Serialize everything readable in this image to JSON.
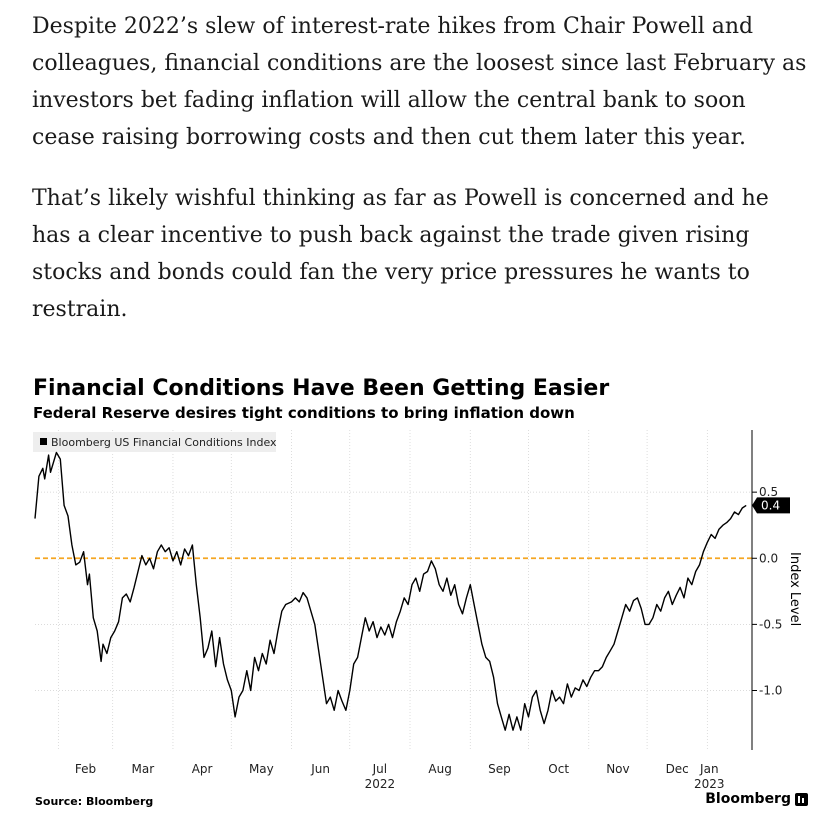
{
  "article": {
    "paragraphs": [
      "Despite 2022’s slew of interest-rate hikes from Chair Powell and colleagues, financial conditions are the loosest since last February as investors bet fading inflation will allow the central bank to soon cease raising borrowing costs and then cut them later this year.",
      "That’s likely wishful thinking as far as Powell is concerned and he has a clear incentive to push back against the trade given rising stocks and bonds could fan the very price pressures he wants to restrain."
    ]
  },
  "footer": {
    "source": "Source: Bloomberg",
    "brand": "Bloomberg"
  },
  "colors": {
    "line": "#000000",
    "zero_line": "#f5a623",
    "grid": "#cfcfcf",
    "legend_bg": "#eeeeee"
  },
  "chart_data": {
    "type": "line",
    "title": "Financial Conditions Have Been Getting Easier",
    "subtitle": "Federal Reserve desires tight conditions to bring inflation down",
    "ylabel": "Index Level",
    "legend": "Bloomberg US Financial Conditions Index",
    "legend_position": "top-left",
    "ylim": [
      -1.45,
      0.97
    ],
    "yticks": [
      0.5,
      0.0,
      -0.5,
      -1.0
    ],
    "ytick_labels": [
      "0.5",
      "0.0",
      "-0.5",
      "-1.0"
    ],
    "x_month_ticks": [
      {
        "label": "Feb",
        "x": "2022-02-01"
      },
      {
        "label": "Mar",
        "x": "2022-03-01"
      },
      {
        "label": "Apr",
        "x": "2022-04-01"
      },
      {
        "label": "May",
        "x": "2022-05-01"
      },
      {
        "label": "Jun",
        "x": "2022-06-01"
      },
      {
        "label": "Jul",
        "x": "2022-07-01",
        "sub": "2022"
      },
      {
        "label": "Aug",
        "x": "2022-08-01"
      },
      {
        "label": "Sep",
        "x": "2022-09-01"
      },
      {
        "label": "Oct",
        "x": "2022-10-01"
      },
      {
        "label": "Nov",
        "x": "2022-11-01"
      },
      {
        "label": "Dec",
        "x": "2022-12-01"
      },
      {
        "label": "Jan",
        "x": "2023-01-01",
        "sub": "2023"
      }
    ],
    "x_range": [
      "2022-01-20",
      "2023-01-24"
    ],
    "reference_line": 0.0,
    "last_value": 0.4,
    "last_value_label": "0.4",
    "series": [
      {
        "name": "Bloomberg US Financial Conditions Index",
        "points": [
          [
            "2022-01-20",
            0.3
          ],
          [
            "2022-01-22",
            0.62
          ],
          [
            "2022-01-24",
            0.68
          ],
          [
            "2022-01-25",
            0.6
          ],
          [
            "2022-01-27",
            0.78
          ],
          [
            "2022-01-28",
            0.65
          ],
          [
            "2022-01-31",
            0.8
          ],
          [
            "2022-02-02",
            0.75
          ],
          [
            "2022-02-04",
            0.4
          ],
          [
            "2022-02-06",
            0.32
          ],
          [
            "2022-02-08",
            0.1
          ],
          [
            "2022-02-10",
            -0.05
          ],
          [
            "2022-02-12",
            -0.03
          ],
          [
            "2022-02-14",
            0.05
          ],
          [
            "2022-02-16",
            -0.2
          ],
          [
            "2022-02-17",
            -0.12
          ],
          [
            "2022-02-19",
            -0.45
          ],
          [
            "2022-02-21",
            -0.55
          ],
          [
            "2022-02-23",
            -0.78
          ],
          [
            "2022-02-24",
            -0.65
          ],
          [
            "2022-02-26",
            -0.72
          ],
          [
            "2022-02-28",
            -0.6
          ],
          [
            "2022-03-02",
            -0.55
          ],
          [
            "2022-03-04",
            -0.48
          ],
          [
            "2022-03-06",
            -0.3
          ],
          [
            "2022-03-08",
            -0.27
          ],
          [
            "2022-03-10",
            -0.33
          ],
          [
            "2022-03-12",
            -0.22
          ],
          [
            "2022-03-14",
            -0.1
          ],
          [
            "2022-03-16",
            0.02
          ],
          [
            "2022-03-18",
            -0.05
          ],
          [
            "2022-03-20",
            0.0
          ],
          [
            "2022-03-22",
            -0.08
          ],
          [
            "2022-03-24",
            0.05
          ],
          [
            "2022-03-26",
            0.1
          ],
          [
            "2022-03-28",
            0.05
          ],
          [
            "2022-03-30",
            0.08
          ],
          [
            "2022-04-01",
            -0.02
          ],
          [
            "2022-04-03",
            0.05
          ],
          [
            "2022-04-05",
            -0.05
          ],
          [
            "2022-04-07",
            0.07
          ],
          [
            "2022-04-09",
            0.02
          ],
          [
            "2022-04-11",
            0.1
          ],
          [
            "2022-04-13",
            -0.2
          ],
          [
            "2022-04-15",
            -0.45
          ],
          [
            "2022-04-17",
            -0.75
          ],
          [
            "2022-04-19",
            -0.68
          ],
          [
            "2022-04-21",
            -0.55
          ],
          [
            "2022-04-23",
            -0.82
          ],
          [
            "2022-04-25",
            -0.6
          ],
          [
            "2022-04-27",
            -0.8
          ],
          [
            "2022-04-29",
            -0.92
          ],
          [
            "2022-05-01",
            -1.0
          ],
          [
            "2022-05-03",
            -1.2
          ],
          [
            "2022-05-05",
            -1.05
          ],
          [
            "2022-05-07",
            -1.0
          ],
          [
            "2022-05-09",
            -0.85
          ],
          [
            "2022-05-11",
            -1.0
          ],
          [
            "2022-05-13",
            -0.75
          ],
          [
            "2022-05-15",
            -0.85
          ],
          [
            "2022-05-17",
            -0.72
          ],
          [
            "2022-05-19",
            -0.8
          ],
          [
            "2022-05-21",
            -0.62
          ],
          [
            "2022-05-23",
            -0.72
          ],
          [
            "2022-05-25",
            -0.55
          ],
          [
            "2022-05-27",
            -0.4
          ],
          [
            "2022-05-29",
            -0.35
          ],
          [
            "2022-06-01",
            -0.33
          ],
          [
            "2022-06-03",
            -0.3
          ],
          [
            "2022-06-05",
            -0.33
          ],
          [
            "2022-06-07",
            -0.26
          ],
          [
            "2022-06-09",
            -0.3
          ],
          [
            "2022-06-11",
            -0.4
          ],
          [
            "2022-06-13",
            -0.5
          ],
          [
            "2022-06-15",
            -0.7
          ],
          [
            "2022-06-17",
            -0.9
          ],
          [
            "2022-06-19",
            -1.1
          ],
          [
            "2022-06-21",
            -1.05
          ],
          [
            "2022-06-23",
            -1.15
          ],
          [
            "2022-06-25",
            -1.0
          ],
          [
            "2022-06-27",
            -1.08
          ],
          [
            "2022-06-29",
            -1.15
          ],
          [
            "2022-07-01",
            -1.0
          ],
          [
            "2022-07-03",
            -0.8
          ],
          [
            "2022-07-05",
            -0.75
          ],
          [
            "2022-07-07",
            -0.6
          ],
          [
            "2022-07-09",
            -0.45
          ],
          [
            "2022-07-11",
            -0.55
          ],
          [
            "2022-07-13",
            -0.48
          ],
          [
            "2022-07-15",
            -0.6
          ],
          [
            "2022-07-17",
            -0.52
          ],
          [
            "2022-07-19",
            -0.58
          ],
          [
            "2022-07-21",
            -0.5
          ],
          [
            "2022-07-23",
            -0.6
          ],
          [
            "2022-07-25",
            -0.48
          ],
          [
            "2022-07-27",
            -0.4
          ],
          [
            "2022-07-29",
            -0.3
          ],
          [
            "2022-07-31",
            -0.35
          ],
          [
            "2022-08-02",
            -0.2
          ],
          [
            "2022-08-04",
            -0.15
          ],
          [
            "2022-08-06",
            -0.25
          ],
          [
            "2022-08-08",
            -0.12
          ],
          [
            "2022-08-10",
            -0.1
          ],
          [
            "2022-08-12",
            -0.02
          ],
          [
            "2022-08-14",
            -0.08
          ],
          [
            "2022-08-16",
            -0.2
          ],
          [
            "2022-08-18",
            -0.25
          ],
          [
            "2022-08-20",
            -0.15
          ],
          [
            "2022-08-22",
            -0.28
          ],
          [
            "2022-08-24",
            -0.2
          ],
          [
            "2022-08-26",
            -0.35
          ],
          [
            "2022-08-28",
            -0.42
          ],
          [
            "2022-08-30",
            -0.3
          ],
          [
            "2022-09-01",
            -0.2
          ],
          [
            "2022-09-03",
            -0.35
          ],
          [
            "2022-09-05",
            -0.5
          ],
          [
            "2022-09-07",
            -0.65
          ],
          [
            "2022-09-09",
            -0.75
          ],
          [
            "2022-09-11",
            -0.78
          ],
          [
            "2022-09-13",
            -0.9
          ],
          [
            "2022-09-15",
            -1.1
          ],
          [
            "2022-09-17",
            -1.2
          ],
          [
            "2022-09-19",
            -1.3
          ],
          [
            "2022-09-21",
            -1.18
          ],
          [
            "2022-09-23",
            -1.3
          ],
          [
            "2022-09-25",
            -1.2
          ],
          [
            "2022-09-27",
            -1.3
          ],
          [
            "2022-09-29",
            -1.1
          ],
          [
            "2022-10-01",
            -1.2
          ],
          [
            "2022-10-03",
            -1.05
          ],
          [
            "2022-10-05",
            -1.0
          ],
          [
            "2022-10-07",
            -1.15
          ],
          [
            "2022-10-09",
            -1.25
          ],
          [
            "2022-10-11",
            -1.15
          ],
          [
            "2022-10-13",
            -1.0
          ],
          [
            "2022-10-15",
            -1.08
          ],
          [
            "2022-10-17",
            -1.05
          ],
          [
            "2022-10-19",
            -1.1
          ],
          [
            "2022-10-21",
            -0.95
          ],
          [
            "2022-10-23",
            -1.05
          ],
          [
            "2022-10-25",
            -0.98
          ],
          [
            "2022-10-27",
            -1.0
          ],
          [
            "2022-10-29",
            -0.92
          ],
          [
            "2022-10-31",
            -0.97
          ],
          [
            "2022-11-02",
            -0.9
          ],
          [
            "2022-11-04",
            -0.85
          ],
          [
            "2022-11-06",
            -0.85
          ],
          [
            "2022-11-08",
            -0.82
          ],
          [
            "2022-11-10",
            -0.75
          ],
          [
            "2022-11-12",
            -0.7
          ],
          [
            "2022-11-14",
            -0.65
          ],
          [
            "2022-11-16",
            -0.55
          ],
          [
            "2022-11-18",
            -0.45
          ],
          [
            "2022-11-20",
            -0.35
          ],
          [
            "2022-11-22",
            -0.4
          ],
          [
            "2022-11-24",
            -0.32
          ],
          [
            "2022-11-26",
            -0.3
          ],
          [
            "2022-11-28",
            -0.38
          ],
          [
            "2022-11-30",
            -0.5
          ],
          [
            "2022-12-02",
            -0.5
          ],
          [
            "2022-12-04",
            -0.45
          ],
          [
            "2022-12-06",
            -0.35
          ],
          [
            "2022-12-08",
            -0.4
          ],
          [
            "2022-12-10",
            -0.3
          ],
          [
            "2022-12-12",
            -0.25
          ],
          [
            "2022-12-14",
            -0.35
          ],
          [
            "2022-12-16",
            -0.28
          ],
          [
            "2022-12-18",
            -0.22
          ],
          [
            "2022-12-20",
            -0.3
          ],
          [
            "2022-12-22",
            -0.15
          ],
          [
            "2022-12-24",
            -0.2
          ],
          [
            "2022-12-26",
            -0.1
          ],
          [
            "2022-12-28",
            -0.05
          ],
          [
            "2022-12-30",
            0.05
          ],
          [
            "2023-01-01",
            0.12
          ],
          [
            "2023-01-03",
            0.18
          ],
          [
            "2023-01-05",
            0.15
          ],
          [
            "2023-01-07",
            0.22
          ],
          [
            "2023-01-09",
            0.25
          ],
          [
            "2023-01-11",
            0.27
          ],
          [
            "2023-01-13",
            0.3
          ],
          [
            "2023-01-15",
            0.35
          ],
          [
            "2023-01-17",
            0.33
          ],
          [
            "2023-01-19",
            0.38
          ],
          [
            "2023-01-21",
            0.4
          ]
        ]
      }
    ]
  }
}
